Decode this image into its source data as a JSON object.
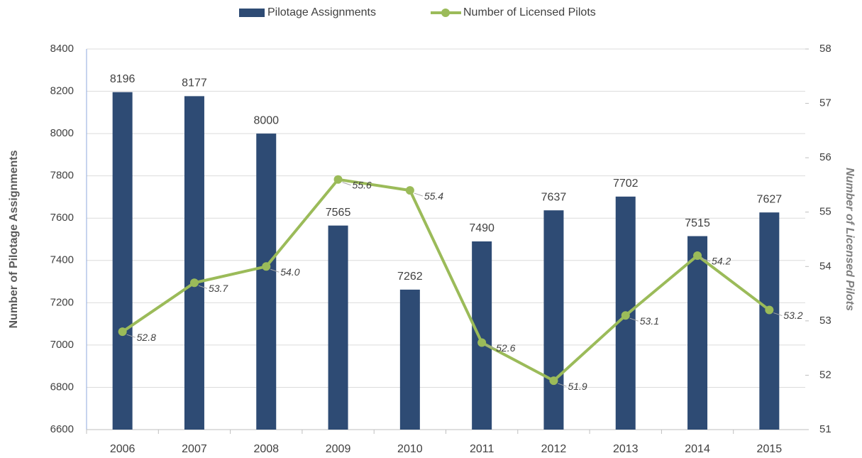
{
  "chart_data": {
    "type": "bar",
    "categories": [
      "2006",
      "2007",
      "2008",
      "2009",
      "2010",
      "2011",
      "2012",
      "2013",
      "2014",
      "2015"
    ],
    "series": [
      {
        "name": "Pilotage Assignments",
        "type": "bar",
        "color": "#2e4b74",
        "values": [
          8196,
          8177,
          8000,
          7565,
          7262,
          7490,
          7637,
          7702,
          7515,
          7627
        ]
      },
      {
        "name": "Number of Licensed Pilots",
        "type": "line",
        "axis": "y2",
        "color": "#9bbb59",
        "values": [
          52.8,
          53.7,
          54.0,
          55.6,
          55.4,
          52.6,
          51.9,
          53.1,
          54.2,
          53.2
        ],
        "value_labels": [
          "52.8",
          "53.7",
          "54.0",
          "55.6",
          "55.4",
          "52.6",
          "51.9",
          "53.1",
          "54.2",
          "53.2"
        ]
      }
    ],
    "ylabel": "Number of Pilotage Assignments",
    "y2label": "Number of Licensed Pilots",
    "ylim": [
      6600,
      8400
    ],
    "yticks": [
      6600,
      6800,
      7000,
      7200,
      7400,
      7600,
      7800,
      8000,
      8200,
      8400
    ],
    "y2lim": [
      51,
      58
    ],
    "y2ticks": [
      51,
      52,
      53,
      54,
      55,
      56,
      57,
      58
    ],
    "grid": true,
    "legend": "top"
  }
}
